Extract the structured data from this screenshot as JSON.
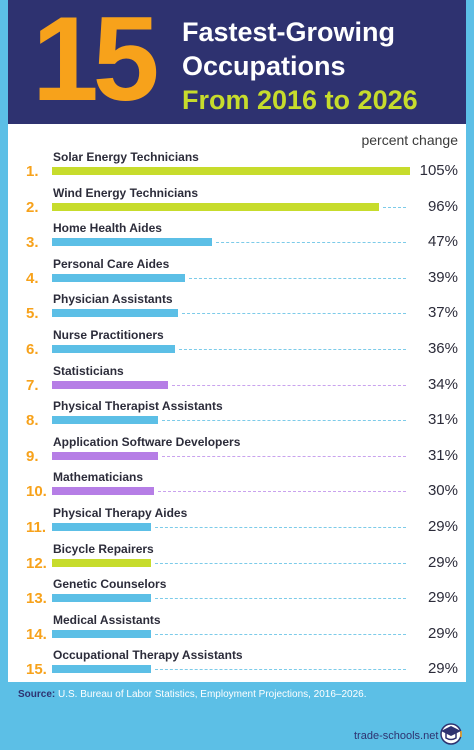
{
  "header": {
    "big_number": "15",
    "title_line1": "Fastest-Growing",
    "title_line2": "Occupations",
    "title_line3": "From 2016 to 2026"
  },
  "subtitle": "percent change",
  "footer": {
    "source_label": "Source:",
    "source_text": "U.S. Bureau of Labor Statistics, Employment Projections, 2016–2026.",
    "brand": "trade-schools.net"
  },
  "colors": {
    "navy": "#2e3270",
    "orange": "#f7a21b",
    "lime": "#c7dc2c",
    "blue": "#5cbfe6",
    "purple": "#b67ee6"
  },
  "chart_data": {
    "type": "bar",
    "orientation": "horizontal",
    "unit": "percent change",
    "items": [
      {
        "rank": "1.",
        "label": "Solar Energy Technicians",
        "value": 105,
        "display": "105%",
        "color": "lime"
      },
      {
        "rank": "2.",
        "label": "Wind Energy Technicians",
        "value": 96,
        "display": "96%",
        "color": "lime"
      },
      {
        "rank": "3.",
        "label": "Home Health Aides",
        "value": 47,
        "display": "47%",
        "color": "blue"
      },
      {
        "rank": "4.",
        "label": "Personal Care Aides",
        "value": 39,
        "display": "39%",
        "color": "blue"
      },
      {
        "rank": "5.",
        "label": "Physician Assistants",
        "value": 37,
        "display": "37%",
        "color": "blue"
      },
      {
        "rank": "6.",
        "label": "Nurse Practitioners",
        "value": 36,
        "display": "36%",
        "color": "blue"
      },
      {
        "rank": "7.",
        "label": "Statisticians",
        "value": 34,
        "display": "34%",
        "color": "purple"
      },
      {
        "rank": "8.",
        "label": "Physical Therapist Assistants",
        "value": 31,
        "display": "31%",
        "color": "blue"
      },
      {
        "rank": "9.",
        "label": "Application Software Developers",
        "value": 31,
        "display": "31%",
        "color": "purple"
      },
      {
        "rank": "10.",
        "label": "Mathematicians",
        "value": 30,
        "display": "30%",
        "color": "purple"
      },
      {
        "rank": "11.",
        "label": "Physical Therapy Aides",
        "value": 29,
        "display": "29%",
        "color": "blue"
      },
      {
        "rank": "12.",
        "label": "Bicycle Repairers",
        "value": 29,
        "display": "29%",
        "color": "lime"
      },
      {
        "rank": "13.",
        "label": "Genetic Counselors",
        "value": 29,
        "display": "29%",
        "color": "blue"
      },
      {
        "rank": "14.",
        "label": "Medical Assistants",
        "value": 29,
        "display": "29%",
        "color": "blue"
      },
      {
        "rank": "15.",
        "label": "Occupational Therapy Assistants",
        "value": 29,
        "display": "29%",
        "color": "blue"
      }
    ]
  }
}
